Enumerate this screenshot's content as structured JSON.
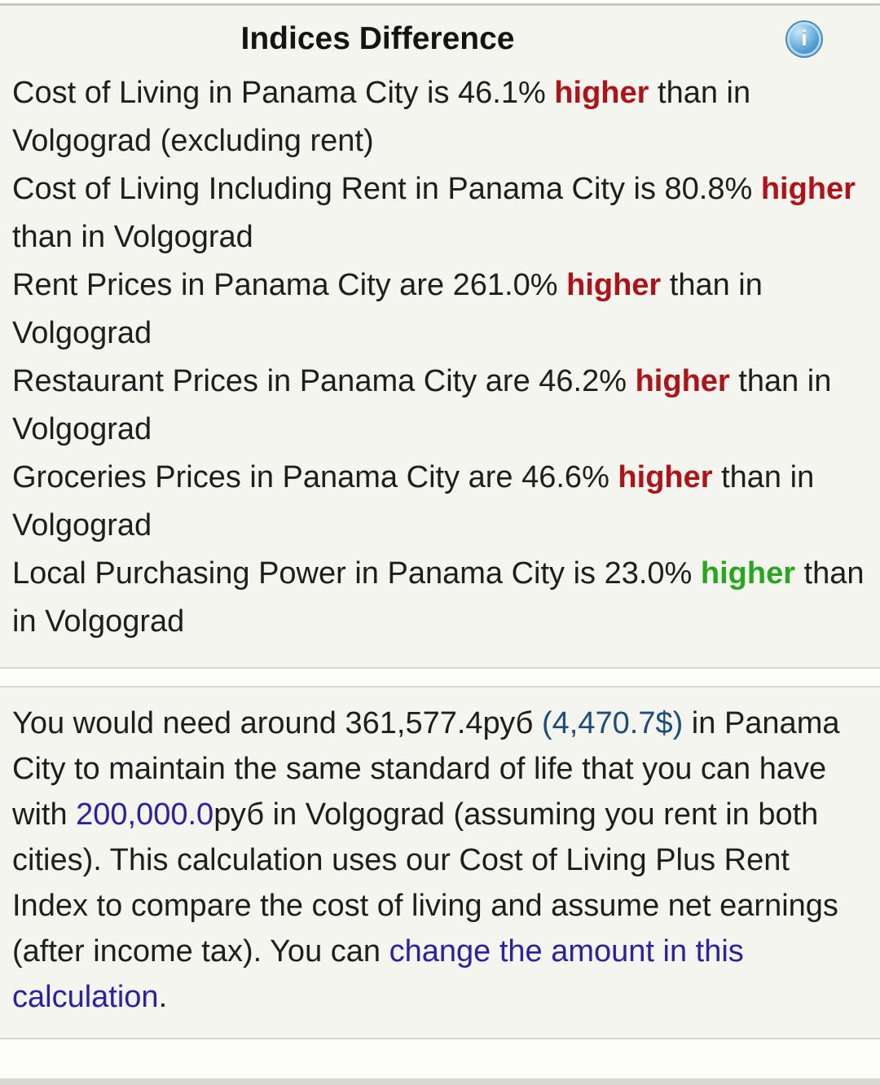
{
  "theme": {
    "section_bg": "#f5f5f0",
    "border_strong": "#c9c9c1",
    "border_soft": "#d8d8d1",
    "text_color": "#1e1e1e",
    "higher_red": "#b01217",
    "higher_green": "#27a71d",
    "usd_color": "#1d4d78",
    "link_color": "#2a21a8",
    "bottom_strip": "#d9d9d3",
    "info_icon_blue": "#4f9ccf"
  },
  "indices_section": {
    "title": "Indices Difference",
    "info_icon_glyph": "i",
    "items": [
      {
        "pre": "Cost of Living in Panama City is 46.1% ",
        "word": "higher",
        "color": "red",
        "post": " than in Volgograd (excluding rent)"
      },
      {
        "pre": "Cost of Living Including Rent in Panama City is 80.8% ",
        "word": "higher",
        "color": "red",
        "post": " than in Volgograd"
      },
      {
        "pre": "Rent Prices in Panama City are 261.0% ",
        "word": "higher",
        "color": "red",
        "post": " than in Volgograd"
      },
      {
        "pre": "Restaurant Prices in Panama City are 46.2% ",
        "word": "higher",
        "color": "red",
        "post": " than in Volgograd"
      },
      {
        "pre": "Groceries Prices in Panama City are 46.6% ",
        "word": "higher",
        "color": "red",
        "post": " than in Volgograd"
      },
      {
        "pre": "Local Purchasing Power in Panama City is 23.0% ",
        "word": "higher",
        "color": "green",
        "post": " than in Volgograd"
      }
    ]
  },
  "estimate_section": {
    "segments": [
      {
        "text": "You would need around 361,577.4руб ",
        "style": "plain",
        "name": "estimate-text"
      },
      {
        "text": "(4,470.7$)",
        "style": "usd",
        "name": "usd-equivalent-link"
      },
      {
        "text": " in Panama City to maintain the same standard of life that you can have with ",
        "style": "plain",
        "name": "estimate-text"
      },
      {
        "text": "200,000.0",
        "style": "link",
        "name": "base-amount-link"
      },
      {
        "text": "руб in Volgograd (assuming you rent in both cities). This calculation uses our Cost of Living Plus Rent Index to compare the cost of living and assume net earnings (after income tax). You can ",
        "style": "plain",
        "name": "estimate-text"
      },
      {
        "text": "change the amount in this calculation",
        "style": "link",
        "name": "change-amount-link"
      },
      {
        "text": ".",
        "style": "plain",
        "name": "estimate-text"
      }
    ]
  }
}
